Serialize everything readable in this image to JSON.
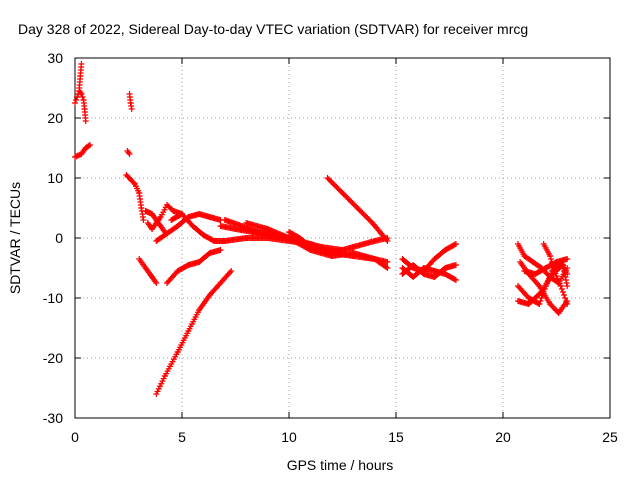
{
  "chart_data": {
    "type": "scatter",
    "title": "Day 328 of 2022, Sidereal Day-to-day VTEC variation (SDTVAR) for receiver mrcg",
    "xlabel": "GPS time / hours",
    "ylabel": "SDTVAR / TECUs",
    "xlim": [
      0,
      25
    ],
    "ylim": [
      -30,
      30
    ],
    "xticks": [
      0,
      5,
      10,
      15,
      20,
      25
    ],
    "yticks": [
      -30,
      -20,
      -10,
      0,
      10,
      20,
      30
    ],
    "grid": true,
    "marker": "+",
    "color": "#ff0000",
    "series": [
      {
        "tracks": [
          [
            [
              0.0,
              13.5
            ],
            [
              0.3,
              14.0
            ],
            [
              0.5,
              15.0
            ],
            [
              0.7,
              15.5
            ]
          ],
          [
            [
              0.0,
              22.5
            ],
            [
              0.1,
              23.5
            ],
            [
              0.2,
              24.5
            ],
            [
              0.3,
              24.0
            ],
            [
              0.4,
              23.0
            ],
            [
              0.45,
              21.5
            ],
            [
              0.5,
              19.5
            ]
          ],
          [
            [
              0.2,
              25.0
            ],
            [
              0.25,
              27.0
            ],
            [
              0.3,
              29.0
            ]
          ],
          [
            [
              2.45,
              14.5
            ],
            [
              2.55,
              14.0
            ]
          ],
          [
            [
              2.55,
              24.0
            ],
            [
              2.6,
              22.5
            ],
            [
              2.65,
              21.5
            ]
          ],
          [
            [
              2.4,
              10.5
            ],
            [
              2.8,
              9.0
            ],
            [
              3.0,
              7.5
            ],
            [
              3.1,
              5.0
            ],
            [
              3.2,
              3.0
            ]
          ],
          [
            [
              3.3,
              4.5
            ],
            [
              3.6,
              4.0
            ],
            [
              3.8,
              3.0
            ],
            [
              4.0,
              2.0
            ],
            [
              4.2,
              1.0
            ]
          ],
          [
            [
              3.4,
              2.5
            ],
            [
              3.6,
              1.5
            ],
            [
              4.0,
              3.5
            ],
            [
              4.3,
              5.5
            ],
            [
              4.6,
              4.5
            ],
            [
              5.0,
              4.0
            ]
          ],
          [
            [
              3.8,
              -0.5
            ],
            [
              4.2,
              0.5
            ],
            [
              4.8,
              2.0
            ],
            [
              5.3,
              3.5
            ],
            [
              5.8,
              4.0
            ],
            [
              6.3,
              3.5
            ],
            [
              6.8,
              3.0
            ]
          ],
          [
            [
              4.5,
              3.0
            ],
            [
              5.0,
              4.0
            ],
            [
              5.5,
              2.0
            ],
            [
              6.0,
              0.5
            ],
            [
              6.5,
              -0.5
            ],
            [
              7.0,
              -0.5
            ]
          ],
          [
            [
              3.0,
              -3.5
            ],
            [
              3.3,
              -5.0
            ],
            [
              3.6,
              -6.5
            ],
            [
              3.8,
              -7.5
            ]
          ],
          [
            [
              4.3,
              -7.5
            ],
            [
              4.8,
              -5.5
            ],
            [
              5.3,
              -4.5
            ],
            [
              5.8,
              -4.0
            ],
            [
              6.3,
              -2.5
            ],
            [
              6.8,
              -2.0
            ]
          ],
          [
            [
              3.8,
              -26.0
            ],
            [
              4.2,
              -23.0
            ],
            [
              4.8,
              -19.0
            ],
            [
              5.3,
              -15.5
            ],
            [
              5.8,
              -12.0
            ],
            [
              6.3,
              -9.5
            ],
            [
              6.8,
              -7.5
            ],
            [
              7.3,
              -5.5
            ]
          ],
          [
            [
              6.8,
              2.0
            ],
            [
              7.5,
              1.5
            ],
            [
              8.3,
              1.0
            ],
            [
              9.0,
              0.5
            ],
            [
              9.8,
              0.0
            ],
            [
              10.5,
              -0.5
            ]
          ],
          [
            [
              7.0,
              3.0
            ],
            [
              7.8,
              2.0
            ],
            [
              8.5,
              1.0
            ],
            [
              9.5,
              0.5
            ],
            [
              10.5,
              -0.5
            ],
            [
              11.5,
              -1.5
            ],
            [
              12.5,
              -2.0
            ]
          ],
          [
            [
              7.0,
              -0.5
            ],
            [
              8.0,
              0.0
            ],
            [
              9.0,
              0.0
            ],
            [
              10.0,
              -0.5
            ],
            [
              11.0,
              -1.0
            ],
            [
              12.0,
              -2.5
            ],
            [
              13.0,
              -3.0
            ],
            [
              14.0,
              -3.5
            ],
            [
              14.6,
              -5.0
            ]
          ],
          [
            [
              8.0,
              2.5
            ],
            [
              9.0,
              1.5
            ],
            [
              10.0,
              0.0
            ],
            [
              11.0,
              -2.0
            ],
            [
              12.0,
              -3.0
            ],
            [
              13.0,
              -2.5
            ],
            [
              14.0,
              -3.5
            ],
            [
              14.6,
              -4.0
            ]
          ],
          [
            [
              10.0,
              1.0
            ],
            [
              10.5,
              0.0
            ],
            [
              11.0,
              -1.5
            ],
            [
              12.0,
              -2.5
            ],
            [
              13.0,
              -1.5
            ],
            [
              14.0,
              -0.5
            ],
            [
              14.6,
              0.0
            ]
          ],
          [
            [
              11.8,
              10.0
            ],
            [
              12.5,
              7.5
            ],
            [
              13.2,
              5.0
            ],
            [
              13.9,
              2.5
            ],
            [
              14.6,
              -0.5
            ]
          ],
          [
            [
              15.3,
              -3.5
            ],
            [
              15.8,
              -5.0
            ],
            [
              16.3,
              -5.5
            ],
            [
              16.8,
              -3.5
            ],
            [
              17.3,
              -2.0
            ],
            [
              17.8,
              -1.0
            ]
          ],
          [
            [
              15.3,
              -5.0
            ],
            [
              15.8,
              -6.5
            ],
            [
              16.3,
              -5.0
            ],
            [
              16.8,
              -5.5
            ],
            [
              17.3,
              -6.0
            ],
            [
              17.8,
              -7.0
            ]
          ],
          [
            [
              15.3,
              -6.0
            ],
            [
              15.8,
              -4.5
            ],
            [
              16.3,
              -6.0
            ],
            [
              16.8,
              -6.5
            ],
            [
              17.3,
              -5.0
            ],
            [
              17.8,
              -4.5
            ]
          ],
          [
            [
              20.7,
              -1.0
            ],
            [
              21.0,
              -3.0
            ],
            [
              21.4,
              -4.0
            ],
            [
              21.8,
              -5.0
            ],
            [
              22.2,
              -6.5
            ],
            [
              22.6,
              -7.5
            ],
            [
              23.0,
              -5.0
            ]
          ],
          [
            [
              20.8,
              -4.0
            ],
            [
              21.2,
              -6.0
            ],
            [
              21.7,
              -8.0
            ],
            [
              22.2,
              -11.0
            ],
            [
              22.6,
              -12.5
            ],
            [
              23.0,
              -10.5
            ]
          ],
          [
            [
              20.7,
              -8.0
            ],
            [
              21.2,
              -10.0
            ],
            [
              21.7,
              -11.0
            ],
            [
              22.0,
              -8.0
            ],
            [
              22.3,
              -5.5
            ],
            [
              22.7,
              -4.0
            ],
            [
              23.0,
              -6.0
            ]
          ],
          [
            [
              20.7,
              -10.5
            ],
            [
              21.2,
              -11.0
            ],
            [
              21.8,
              -9.0
            ],
            [
              22.3,
              -6.0
            ],
            [
              22.8,
              -4.5
            ],
            [
              23.0,
              -8.0
            ]
          ],
          [
            [
              21.9,
              -1.0
            ],
            [
              22.2,
              -3.0
            ],
            [
              22.4,
              -5.5
            ],
            [
              22.7,
              -8.0
            ],
            [
              23.0,
              -11.0
            ]
          ],
          [
            [
              21.0,
              -5.5
            ],
            [
              21.5,
              -6.0
            ],
            [
              22.0,
              -5.0
            ],
            [
              22.5,
              -4.0
            ],
            [
              23.0,
              -3.5
            ]
          ]
        ]
      }
    ]
  }
}
